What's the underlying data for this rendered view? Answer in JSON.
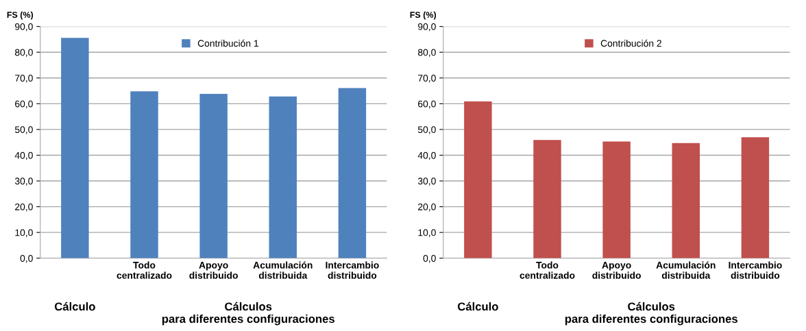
{
  "chart_data": [
    {
      "type": "bar",
      "ylabel": "FS (%)",
      "categories": [
        null,
        "Todo\ncentralizado",
        "Apoyo\ndistribuido",
        "Acumulación\ndistribuida",
        "Intercambio\ndistribuido"
      ],
      "series": [
        {
          "name": "Contribución 1",
          "color": "#4f81bd",
          "values": [
            85.6,
            64.8,
            63.8,
            62.8,
            66.1
          ]
        }
      ],
      "ylim": [
        0,
        90
      ],
      "yticks": [
        {
          "value": 0,
          "label": "0,0"
        },
        {
          "value": 10,
          "label": "10,0"
        },
        {
          "value": 20,
          "label": "20,0"
        },
        {
          "value": 30,
          "label": "30,0"
        },
        {
          "value": 40,
          "label": "40,0"
        },
        {
          "value": 50,
          "label": "50,0"
        },
        {
          "value": 60,
          "label": "60,0"
        },
        {
          "value": 70,
          "label": "70,0"
        },
        {
          "value": 80,
          "label": "80,0"
        },
        {
          "value": 90,
          "label": "90,0"
        }
      ],
      "grid": "y",
      "legend": "top",
      "annotations": [
        "Cálculo",
        "Cálculos\npara diferentes configuraciones"
      ]
    },
    {
      "type": "bar",
      "ylabel": "FS (%)",
      "categories": [
        null,
        "Todo\ncentralizado",
        "Apoyo\ndistribuido",
        "Acumulación\ndistribuida",
        "Intercambio\ndistribuido"
      ],
      "series": [
        {
          "name": "Contribución 2",
          "color": "#c0504d",
          "values": [
            60.9,
            45.9,
            45.3,
            44.7,
            47.0
          ]
        }
      ],
      "ylim": [
        0,
        90
      ],
      "yticks": [
        {
          "value": 0,
          "label": "0,0"
        },
        {
          "value": 10,
          "label": "10,0"
        },
        {
          "value": 20,
          "label": "20,0"
        },
        {
          "value": 30,
          "label": "30,0"
        },
        {
          "value": 40,
          "label": "40,0"
        },
        {
          "value": 50,
          "label": "50,0"
        },
        {
          "value": 60,
          "label": "60,0"
        },
        {
          "value": 70,
          "label": "70,0"
        },
        {
          "value": 80,
          "label": "80,0"
        },
        {
          "value": 90,
          "label": "90,0"
        }
      ],
      "grid": "y",
      "legend": "top",
      "annotations": [
        "Cálculo",
        "Cálculos\npara diferentes configuraciones"
      ]
    }
  ]
}
